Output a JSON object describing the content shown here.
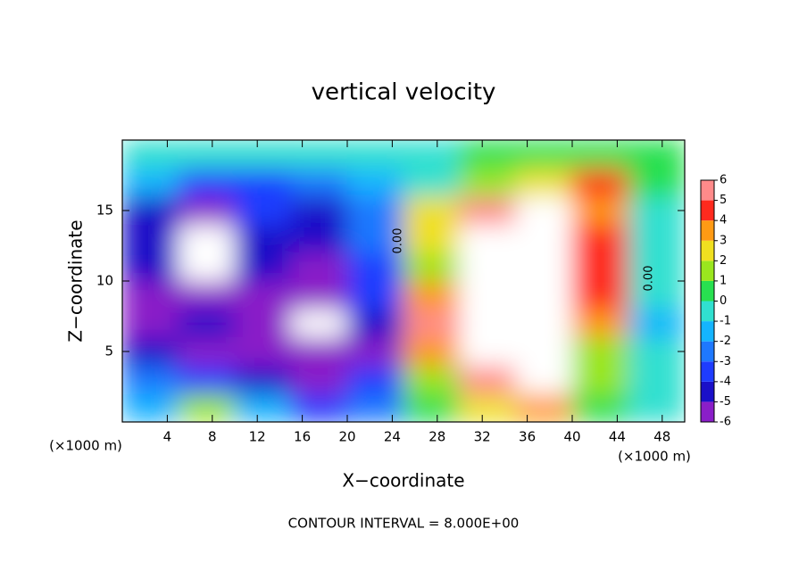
{
  "chart_data": {
    "type": "contour",
    "title": "vertical velocity",
    "xlabel": "X−coordinate",
    "ylabel": "Z−coordinate",
    "x_unit": "(×1000 m)",
    "footnote": "CONTOUR INTERVAL = 8.000E+00",
    "contour_labels": [
      "0.00",
      "0.00"
    ],
    "xlim": [
      0,
      50
    ],
    "ylim": [
      0,
      20
    ],
    "xticks": [
      4,
      8,
      12,
      16,
      20,
      24,
      28,
      32,
      36,
      40,
      44,
      48
    ],
    "yticks": [
      5,
      10,
      15
    ],
    "x": [
      2.5,
      7.5,
      12.5,
      17.5,
      22.5,
      27.5,
      32.5,
      37.5,
      42.5,
      47.5
    ],
    "y": [
      1,
      3,
      5,
      7,
      9,
      11,
      13,
      15,
      17,
      19
    ],
    "z": [
      [
        -1.5,
        2,
        -1,
        -3,
        -2,
        1,
        3,
        4,
        1,
        0
      ],
      [
        -2.5,
        -3,
        -4,
        -5,
        -3.5,
        2,
        5.5,
        6.5,
        1.5,
        0
      ],
      [
        -4,
        -5,
        -6,
        -6,
        -5,
        4,
        6.5,
        6.5,
        2,
        -0.5
      ],
      [
        -5.5,
        -4.5,
        -5,
        -6.5,
        -4.5,
        5.5,
        6.5,
        6.5,
        3.5,
        -1.5
      ],
      [
        -5,
        -6,
        -5,
        -5,
        -3.5,
        4,
        6.5,
        6.5,
        4.5,
        -0.5
      ],
      [
        -4.5,
        -6.5,
        -4.5,
        -5,
        -3,
        2,
        6.5,
        6.5,
        4.5,
        0
      ],
      [
        -4.5,
        -6.5,
        -4,
        -4.5,
        -2.5,
        3,
        6.5,
        6.5,
        4.5,
        0
      ],
      [
        -4,
        -5,
        -3.5,
        -4,
        -2,
        3,
        5.5,
        6.5,
        4,
        0
      ],
      [
        -1,
        -3,
        -3,
        -2,
        -1,
        0,
        1.5,
        3,
        4.5,
        1
      ],
      [
        0,
        0,
        0,
        0,
        0,
        0,
        0.5,
        1,
        1,
        0.5
      ]
    ],
    "colorbar": {
      "levels": [
        -6,
        -5,
        -4,
        -3,
        -2,
        -1,
        0,
        1,
        2,
        3,
        4,
        5,
        6
      ],
      "colors": [
        "#8a1ec8",
        "#1a10c8",
        "#1e3cff",
        "#1e78ff",
        "#14b4ff",
        "#30e0d0",
        "#28e050",
        "#9ae61e",
        "#f0e020",
        "#ff9a14",
        "#ff2a1e",
        "#ff8a8a"
      ]
    },
    "out_of_range_color": "#ffffff"
  }
}
